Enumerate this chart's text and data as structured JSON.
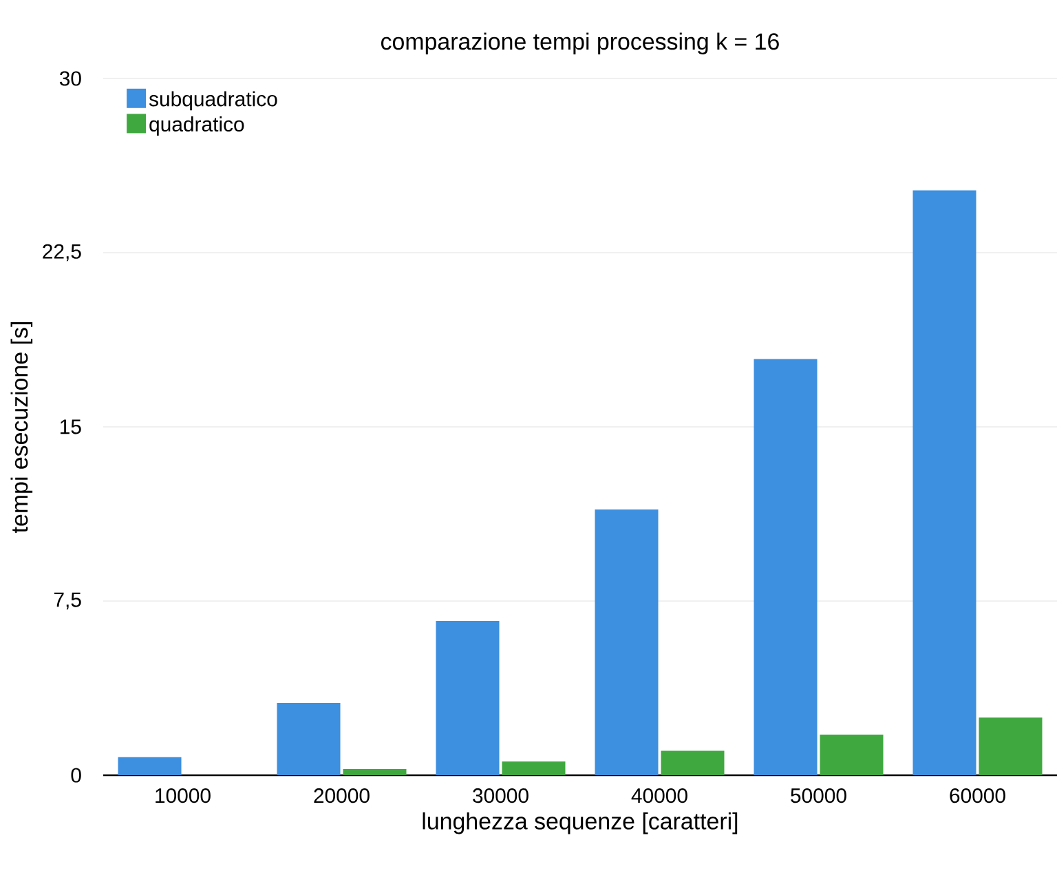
{
  "chart_data": {
    "type": "bar",
    "title": "comparazione tempi processing k = 16",
    "xlabel": "lunghezza sequenze [caratteri]",
    "ylabel": "tempi esecuzione [s]",
    "categories": [
      "10000",
      "20000",
      "30000",
      "40000",
      "50000",
      "60000"
    ],
    "series": [
      {
        "name": "subquadratico",
        "color": "#3d8fe0",
        "values": [
          0.78,
          3.11,
          6.64,
          11.44,
          17.92,
          25.18
        ]
      },
      {
        "name": "quadratico",
        "color": "#3fa83f",
        "values": [
          0,
          0.27,
          0.59,
          1.05,
          1.75,
          2.48
        ]
      }
    ],
    "ylim": [
      0,
      30
    ],
    "yticks": [
      0,
      {
        "value": 7.5,
        "label": "7,5"
      },
      15,
      {
        "value": 22.5,
        "label": "22,5"
      },
      30
    ],
    "grid": "y",
    "legend": "top left"
  }
}
